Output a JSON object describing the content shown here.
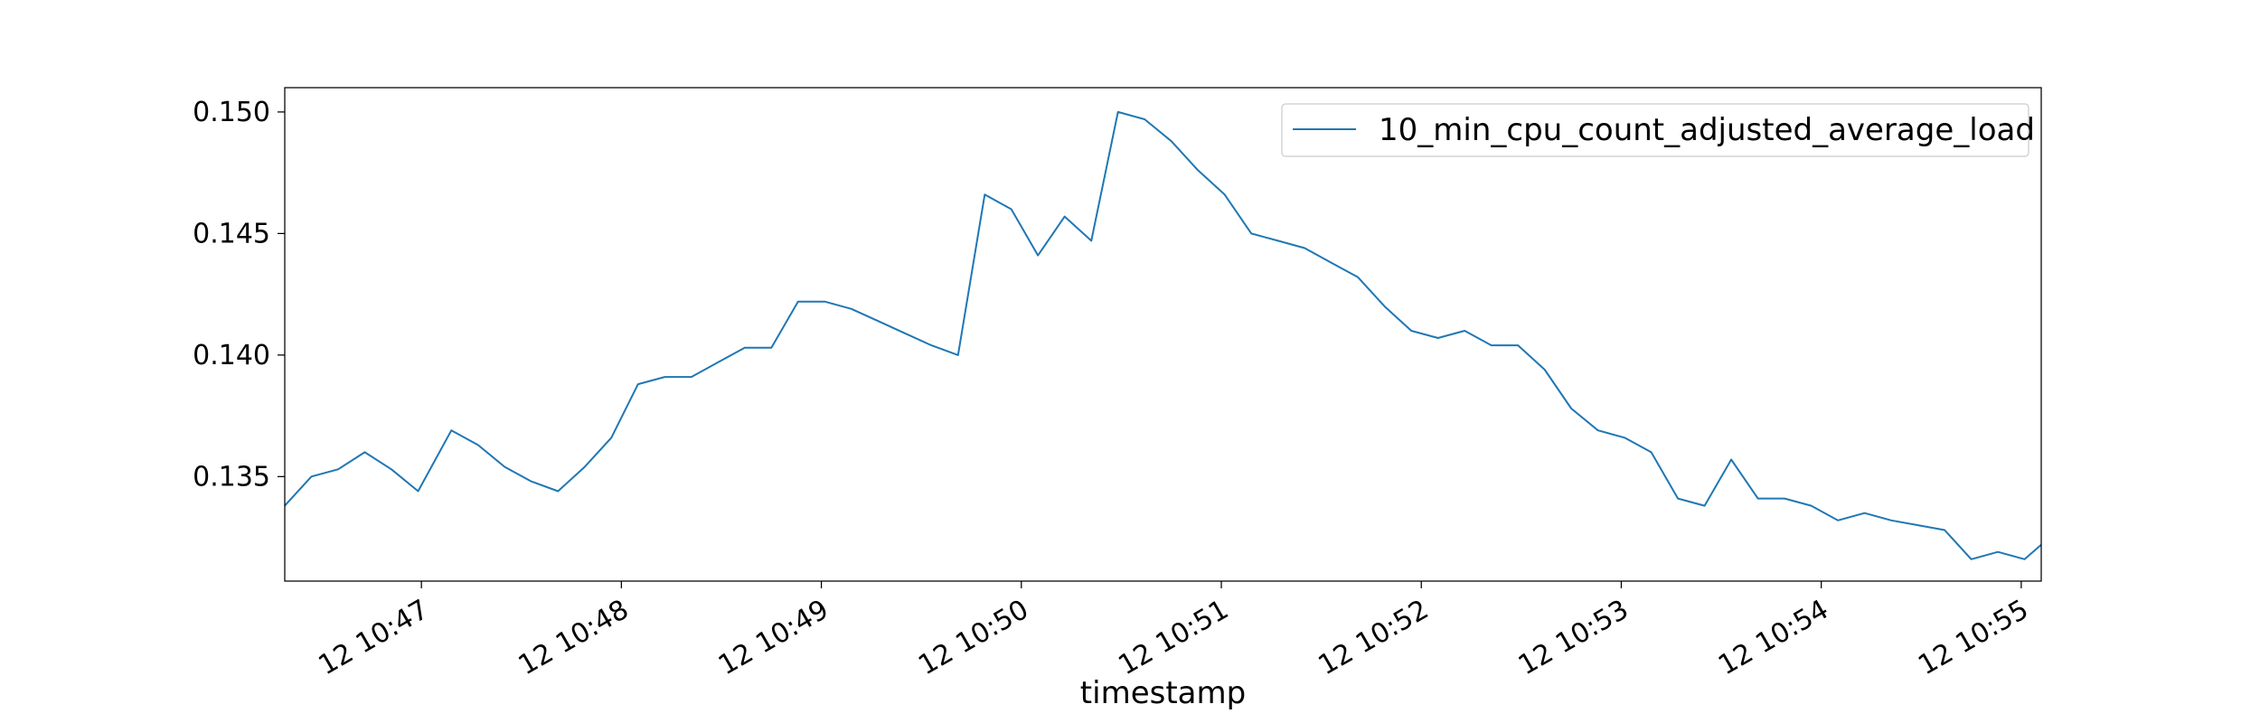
{
  "chart_data": {
    "type": "line",
    "title": "",
    "xlabel": "timestamp",
    "ylabel": "",
    "x_tick_labels": [
      "12 10:47",
      "12 10:48",
      "12 10:49",
      "12 10:50",
      "12 10:51",
      "12 10:52",
      "12 10:53",
      "12 10:54",
      "12 10:55"
    ],
    "x_tick_minutes": [
      "10:47",
      "10:48",
      "10:49",
      "10:50",
      "10:51",
      "10:52",
      "10:53",
      "10:54",
      "10:55"
    ],
    "xlim": [
      "10:46:19",
      "10:55:06"
    ],
    "y_ticks": [
      "0.135",
      "0.140",
      "0.145",
      "0.150"
    ],
    "ylim": [
      0.1307,
      0.151
    ],
    "grid": false,
    "legend_position": "top-right",
    "series": [
      {
        "name": "10_min_cpu_count_adjusted_average_load",
        "color": "#1f77b4",
        "points": [
          [
            "10:46:19",
            0.1338
          ],
          [
            "10:46:27",
            0.135
          ],
          [
            "10:46:35",
            0.1353
          ],
          [
            "10:46:43",
            0.136
          ],
          [
            "10:46:51",
            0.1353
          ],
          [
            "10:46:59",
            0.1344
          ],
          [
            "10:47:09",
            0.1369
          ],
          [
            "10:47:17",
            0.1363
          ],
          [
            "10:47:25",
            0.1354
          ],
          [
            "10:47:33",
            0.1348
          ],
          [
            "10:47:41",
            0.1344
          ],
          [
            "10:47:49",
            0.1354
          ],
          [
            "10:47:57",
            0.1366
          ],
          [
            "10:48:05",
            0.1388
          ],
          [
            "10:48:13",
            0.1391
          ],
          [
            "10:48:21",
            0.1391
          ],
          [
            "10:48:29",
            0.1397
          ],
          [
            "10:48:37",
            0.1403
          ],
          [
            "10:48:45",
            0.1403
          ],
          [
            "10:48:53",
            0.1422
          ],
          [
            "10:49:01",
            0.1422
          ],
          [
            "10:49:09",
            0.1419
          ],
          [
            "10:49:17",
            0.1414
          ],
          [
            "10:49:25",
            0.1409
          ],
          [
            "10:49:33",
            0.1404
          ],
          [
            "10:49:41",
            0.14
          ],
          [
            "10:49:49",
            0.1466
          ],
          [
            "10:49:57",
            0.146
          ],
          [
            "10:50:05",
            0.1441
          ],
          [
            "10:50:13",
            0.1457
          ],
          [
            "10:50:21",
            0.1447
          ],
          [
            "10:50:29",
            0.15
          ],
          [
            "10:50:37",
            0.1497
          ],
          [
            "10:50:45",
            0.1488
          ],
          [
            "10:50:53",
            0.1476
          ],
          [
            "10:51:01",
            0.1466
          ],
          [
            "10:51:09",
            0.145
          ],
          [
            "10:51:17",
            0.1447
          ],
          [
            "10:51:25",
            0.1444
          ],
          [
            "10:51:33",
            0.1438
          ],
          [
            "10:51:41",
            0.1432
          ],
          [
            "10:51:49",
            0.142
          ],
          [
            "10:51:57",
            0.141
          ],
          [
            "10:52:05",
            0.1407
          ],
          [
            "10:52:13",
            0.141
          ],
          [
            "10:52:21",
            0.1404
          ],
          [
            "10:52:29",
            0.1404
          ],
          [
            "10:52:37",
            0.1394
          ],
          [
            "10:52:45",
            0.1378
          ],
          [
            "10:52:53",
            0.1369
          ],
          [
            "10:53:01",
            0.1366
          ],
          [
            "10:53:09",
            0.136
          ],
          [
            "10:53:17",
            0.1341
          ],
          [
            "10:53:25",
            0.1338
          ],
          [
            "10:53:33",
            0.1357
          ],
          [
            "10:53:41",
            0.1341
          ],
          [
            "10:53:49",
            0.1341
          ],
          [
            "10:53:57",
            0.1338
          ],
          [
            "10:54:05",
            0.1332
          ],
          [
            "10:54:13",
            0.1335
          ],
          [
            "10:54:21",
            0.1332
          ],
          [
            "10:54:29",
            0.133
          ],
          [
            "10:54:37",
            0.1328
          ],
          [
            "10:54:45",
            0.1316
          ],
          [
            "10:54:53",
            0.1319
          ],
          [
            "10:55:01",
            0.1316
          ],
          [
            "10:55:06",
            0.1322
          ]
        ]
      }
    ]
  }
}
